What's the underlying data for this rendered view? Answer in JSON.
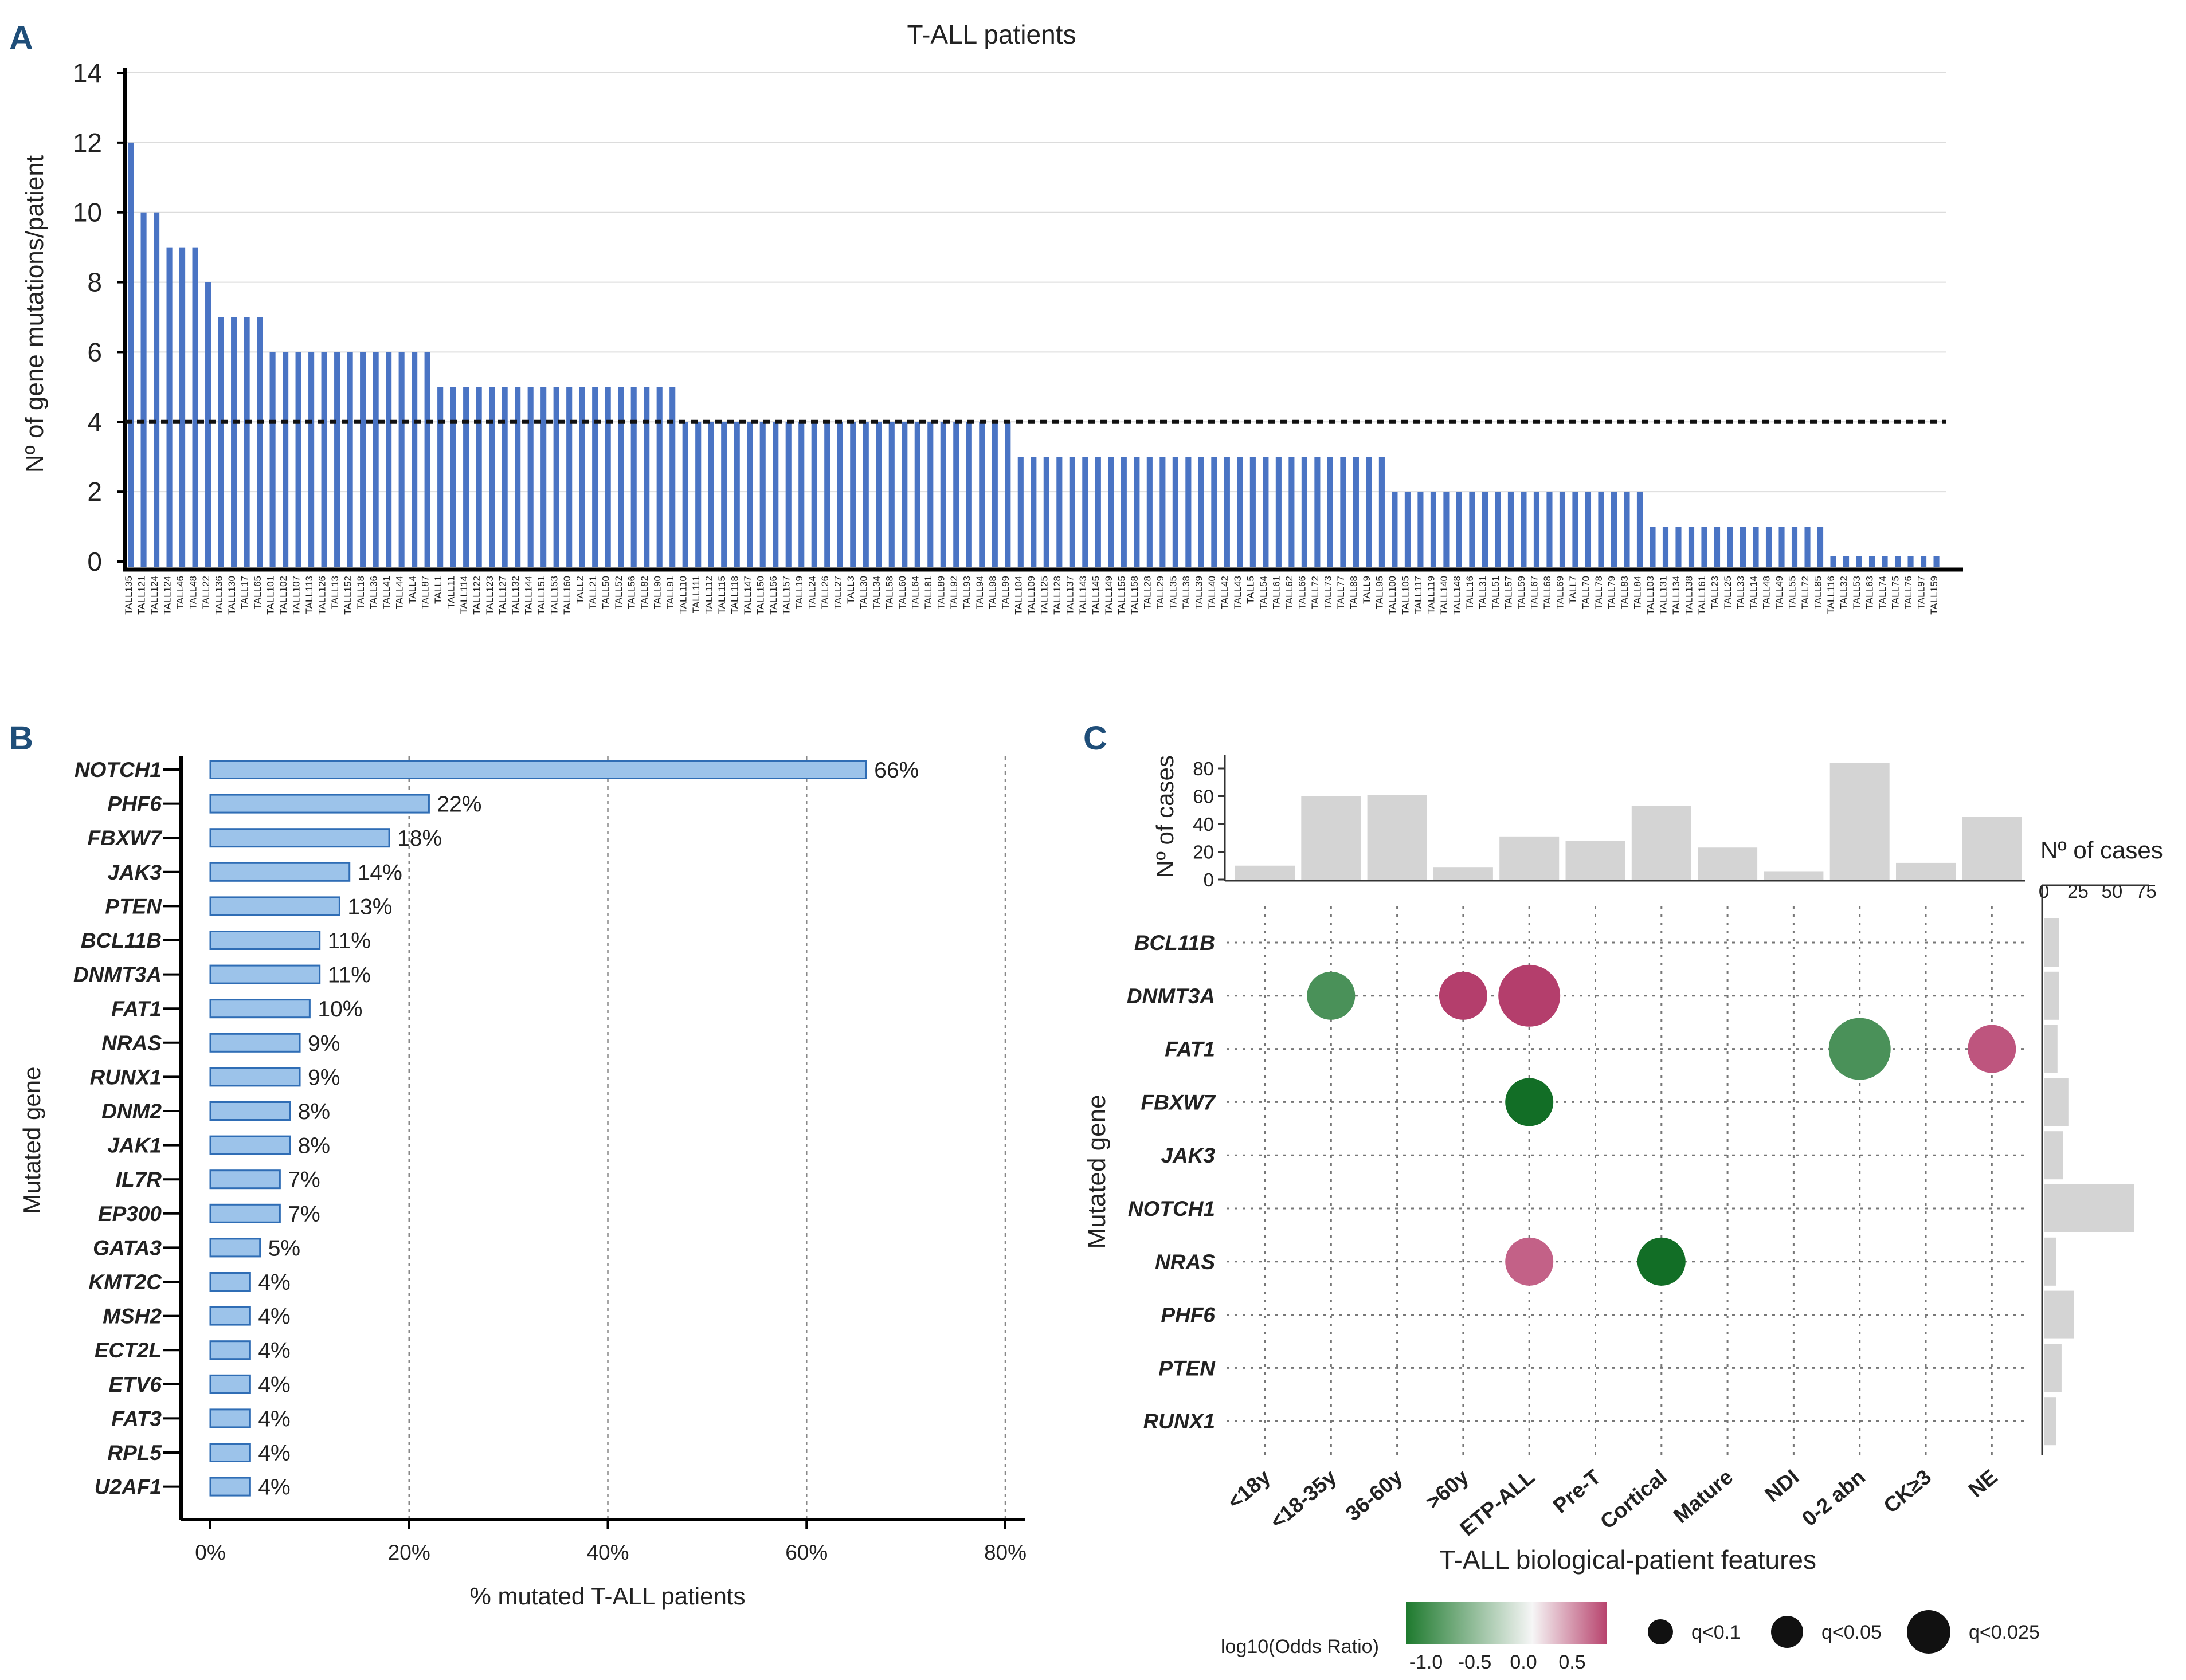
{
  "panels": {
    "a": "A",
    "b": "B",
    "c": "C"
  },
  "chart_data": [
    {
      "type": "bar",
      "panel": "A",
      "title": "T-ALL patients",
      "ylabel": "Nº of gene mutations/patient",
      "ylim": [
        0,
        14
      ],
      "yticks": [
        "0",
        "2",
        "4",
        "6",
        "8",
        "10",
        "12",
        "14"
      ],
      "threshold": 4,
      "categories": [
        "TALL135",
        "TALL121",
        "TALL124",
        "TALL124",
        "TALL46",
        "TALL48",
        "TALL22",
        "TALL136",
        "TALL130",
        "TALL17",
        "TALL65",
        "TALL101",
        "TALL102",
        "TALL107",
        "TALL113",
        "TALL126",
        "TALL13",
        "TALL152",
        "TALL18",
        "TALL36",
        "TALL41",
        "TALL44",
        "TALL4",
        "TALL87",
        "TALL1",
        "TALL11",
        "TALL114",
        "TALL122",
        "TALL123",
        "TALL127",
        "TALL132",
        "TALL144",
        "TALL151",
        "TALL153",
        "TALL160",
        "TALL2",
        "TALL21",
        "TALL50",
        "TALL52",
        "TALL56",
        "TALL82",
        "TALL90",
        "TALL91",
        "TALL110",
        "TALL111",
        "TALL112",
        "TALL115",
        "TALL118",
        "TALL147",
        "TALL150",
        "TALL156",
        "TALL157",
        "TALL19",
        "TALL24",
        "TALL26",
        "TALL27",
        "TALL3",
        "TALL30",
        "TALL34",
        "TALL58",
        "TALL60",
        "TALL64",
        "TALL81",
        "TALL89",
        "TALL92",
        "TALL93",
        "TALL94",
        "TALL98",
        "TALL99",
        "TALL104",
        "TALL109",
        "TALL125",
        "TALL128",
        "TALL137",
        "TALL143",
        "TALL145",
        "TALL149",
        "TALL155",
        "TALL158",
        "TALL28",
        "TALL29",
        "TALL35",
        "TALL38",
        "TALL39",
        "TALL40",
        "TALL42",
        "TALL43",
        "TALL5",
        "TALL54",
        "TALL61",
        "TALL62",
        "TALL66",
        "TALL72",
        "TALL73",
        "TALL77",
        "TALL88",
        "TALL9",
        "TALL95",
        "TALL100",
        "TALL105",
        "TALL117",
        "TALL119",
        "TALL140",
        "TALL148",
        "TALL16",
        "TALL31",
        "TALL51",
        "TALL57",
        "TALL59",
        "TALL67",
        "TALL68",
        "TALL69",
        "TALL7",
        "TALL70",
        "TALL78",
        "TALL79",
        "TALL83",
        "TALL84",
        "TALL103",
        "TALL131",
        "TALL134",
        "TALL138",
        "TALL161",
        "TALL23",
        "TALL25",
        "TALL33",
        "TALL14",
        "TALL48",
        "TALL49",
        "TALL55",
        "TALL72",
        "TALL85",
        "TALL116",
        "TALL32",
        "TALL53",
        "TALL63",
        "TALL74",
        "TALL75",
        "TALL76",
        "TALL97",
        "TALL159"
      ],
      "values": [
        12,
        10,
        10,
        9,
        9,
        9,
        8,
        7,
        7,
        7,
        7,
        6,
        6,
        6,
        6,
        6,
        6,
        6,
        6,
        6,
        6,
        6,
        6,
        6,
        5,
        5,
        5,
        5,
        5,
        5,
        5,
        5,
        5,
        5,
        5,
        5,
        5,
        5,
        5,
        5,
        5,
        5,
        5,
        4,
        4,
        4,
        4,
        4,
        4,
        4,
        4,
        4,
        4,
        4,
        4,
        4,
        4,
        4,
        4,
        4,
        4,
        4,
        4,
        4,
        4,
        4,
        4,
        4,
        4,
        3,
        3,
        3,
        3,
        3,
        3,
        3,
        3,
        3,
        3,
        3,
        3,
        3,
        3,
        3,
        3,
        3,
        3,
        3,
        3,
        3,
        3,
        3,
        3,
        3,
        3,
        3,
        3,
        3,
        2,
        2,
        2,
        2,
        2,
        2,
        2,
        2,
        2,
        2,
        2,
        2,
        2,
        2,
        2,
        2,
        2,
        2,
        2,
        2,
        1,
        1,
        1,
        1,
        1,
        1,
        1,
        1,
        1,
        1,
        1,
        1,
        1,
        1,
        0.15,
        0.15,
        0.15,
        0.15,
        0.15,
        0.15,
        0.15,
        0.15,
        0.15
      ],
      "color": "#4a74c4"
    },
    {
      "type": "bar",
      "orientation": "horizontal",
      "panel": "B",
      "xlabel": "% mutated T-ALL patients",
      "ylabel": "Mutated gene",
      "xlim": [
        0,
        80
      ],
      "xticks": [
        "0%",
        "20%",
        "40%",
        "60%",
        "80%"
      ],
      "categories": [
        "NOTCH1",
        "PHF6",
        "FBXW7",
        "JAK3",
        "PTEN",
        "BCL11B",
        "DNMT3A",
        "FAT1",
        "NRAS",
        "RUNX1",
        "DNM2",
        "JAK1",
        "IL7R",
        "EP300",
        "GATA3",
        "KMT2C",
        "MSH2",
        "ECT2L",
        "ETV6",
        "FAT3",
        "RPL5",
        "U2AF1"
      ],
      "values": [
        66,
        22,
        18,
        14,
        13,
        11,
        11,
        10,
        9,
        9,
        8,
        8,
        7,
        7,
        5,
        4,
        4,
        4,
        4,
        4,
        4,
        4
      ],
      "labels": [
        "66%",
        "22%",
        "18%",
        "14%",
        "13%",
        "11%",
        "11%",
        "10%",
        "9%",
        "9%",
        "8%",
        "8%",
        "7%",
        "7%",
        "5%",
        "4%",
        "4%",
        "4%",
        "4%",
        "4%",
        "4%",
        "4%"
      ],
      "color": "#9cc3ea"
    },
    {
      "type": "bar",
      "panel": "C-top",
      "ylabel": "Nº of cases",
      "ylim": [
        0,
        85
      ],
      "yticks": [
        "0",
        "20",
        "40",
        "60",
        "80"
      ],
      "categories": [
        "<18y",
        "<18-35y",
        "36-60y",
        ">60y",
        "ETP-ALL",
        "Pre-T",
        "Cortical",
        "Mature",
        "NDI",
        "0-2 abn",
        "CK≥3",
        "NE"
      ],
      "values": [
        10,
        60,
        61,
        9,
        31,
        28,
        53,
        23,
        6,
        84,
        12,
        45
      ],
      "color": "#d4d4d4"
    },
    {
      "type": "bar",
      "orientation": "horizontal",
      "panel": "C-right",
      "xlabel": "Nº of cases",
      "xticks": [
        "0",
        "25",
        "50",
        "75"
      ],
      "xlim": [
        0,
        100
      ],
      "categories": [
        "BCL11B",
        "DNMT3A",
        "FAT1",
        "FBXW7",
        "JAK3",
        "NOTCH1",
        "NRAS",
        "PHF6",
        "PTEN",
        "RUNX1"
      ],
      "values": [
        11,
        11,
        10,
        18,
        14,
        66,
        9,
        22,
        13,
        9
      ],
      "color": "#d4d4d4"
    },
    {
      "type": "scatter",
      "panel": "C",
      "xlabel": "T-ALL biological-patient features",
      "ylabel": "Mutated gene",
      "x_categories": [
        "<18y",
        "<18-35y",
        "36-60y",
        ">60y",
        "ETP-ALL",
        "Pre-T",
        "Cortical",
        "Mature",
        "NDI",
        "0-2 abn",
        "CK≥3",
        "NE"
      ],
      "y_categories": [
        "BCL11B",
        "DNMT3A",
        "FAT1",
        "FBXW7",
        "JAK3",
        "NOTCH1",
        "NRAS",
        "PHF6",
        "PTEN",
        "RUNX1"
      ],
      "points": [
        {
          "gene": "DNMT3A",
          "feature": "<18-35y",
          "log10_or": -0.8,
          "q": "q<0.05"
        },
        {
          "gene": "DNMT3A",
          "feature": ">60y",
          "log10_or": 0.6,
          "q": "q<0.05"
        },
        {
          "gene": "DNMT3A",
          "feature": "ETP-ALL",
          "log10_or": 0.6,
          "q": "q<0.025"
        },
        {
          "gene": "FAT1",
          "feature": "0-2 abn",
          "log10_or": -0.8,
          "q": "q<0.025"
        },
        {
          "gene": "FAT1",
          "feature": "NE",
          "log10_or": 0.5,
          "q": "q<0.05"
        },
        {
          "gene": "FBXW7",
          "feature": "ETP-ALL",
          "log10_or": -1.1,
          "q": "q<0.05"
        },
        {
          "gene": "NRAS",
          "feature": "ETP-ALL",
          "log10_or": 0.45,
          "q": "q<0.05"
        },
        {
          "gene": "NRAS",
          "feature": "Cortical",
          "log10_or": -1.1,
          "q": "q<0.05"
        }
      ],
      "colorbar": {
        "title": "log10(Odds Ratio)",
        "ticks": [
          "-1.0",
          "-0.5",
          "0.0",
          "0.5"
        ],
        "low": "#1e7a2e",
        "mid": "#f6f6f6",
        "high": "#b8446e"
      },
      "size_legend": [
        "q<0.1",
        "q<0.05",
        "q<0.025"
      ]
    }
  ]
}
